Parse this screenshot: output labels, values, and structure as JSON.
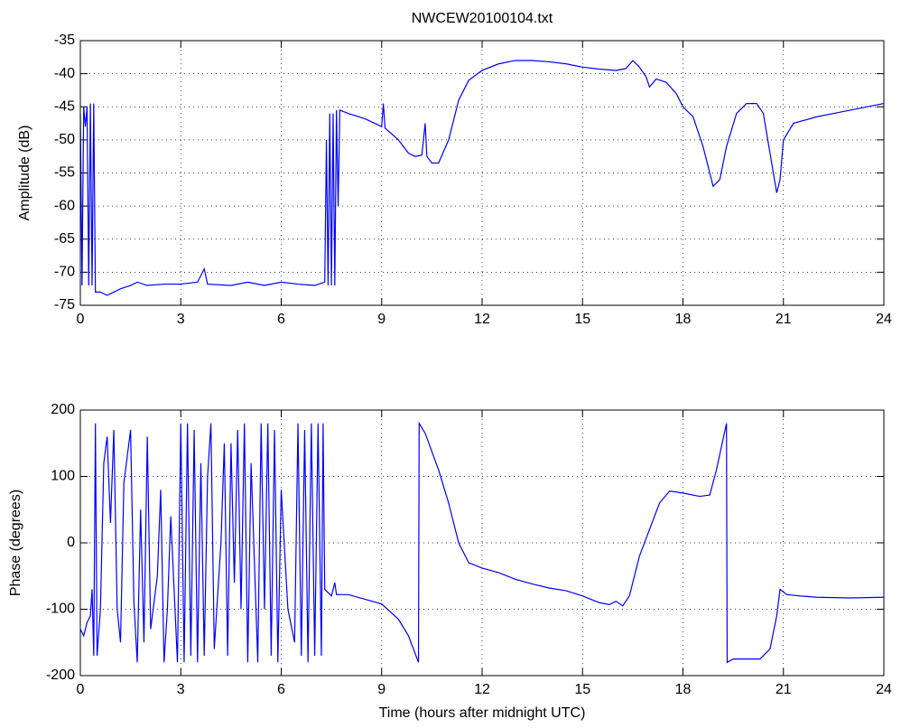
{
  "chart_data": [
    {
      "type": "line",
      "title": "NWCEW20100104.txt",
      "ylabel": "Amplitude (dB)",
      "color": "#0000ff",
      "grid": true,
      "xlim": [
        0,
        24
      ],
      "xticks": [
        0,
        3,
        6,
        9,
        12,
        15,
        18,
        21,
        24
      ],
      "ylim": [
        -75,
        -35
      ],
      "yticks": [
        -75,
        -70,
        -65,
        -60,
        -55,
        -50,
        -45,
        -40,
        -35
      ],
      "x": [
        0,
        0.05,
        0.1,
        0.15,
        0.2,
        0.25,
        0.3,
        0.35,
        0.4,
        0.45,
        0.6,
        0.8,
        1.0,
        1.2,
        1.5,
        1.7,
        2.0,
        2.5,
        3.0,
        3.5,
        3.7,
        3.8,
        4.5,
        5,
        5.5,
        6,
        6.5,
        7.0,
        7.3,
        7.35,
        7.4,
        7.45,
        7.5,
        7.55,
        7.6,
        7.65,
        7.7,
        7.75,
        8,
        8.5,
        9,
        9.05,
        9.1,
        9.5,
        9.8,
        10.0,
        10.2,
        10.3,
        10.35,
        10.5,
        10.7,
        11,
        11.3,
        11.6,
        12,
        12.5,
        13,
        13.5,
        14,
        14.5,
        15,
        15.5,
        16,
        16.3,
        16.5,
        16.7,
        16.9,
        17.0,
        17.2,
        17.5,
        17.8,
        18,
        18.3,
        18.6,
        18.9,
        19.1,
        19.3,
        19.6,
        19.9,
        20.2,
        20.4,
        20.6,
        20.8,
        20.9,
        21,
        21.3,
        22,
        23,
        24
      ],
      "values": [
        -46,
        -72,
        -45,
        -48,
        -45,
        -72,
        -44.5,
        -72,
        -44.5,
        -73,
        -73,
        -73.5,
        -73,
        -72.5,
        -72,
        -71.5,
        -72,
        -71.8,
        -71.8,
        -71.5,
        -69.5,
        -71.8,
        -72,
        -71.5,
        -72,
        -71.5,
        -71.8,
        -72,
        -71.5,
        -50,
        -72,
        -46,
        -72,
        -46,
        -72,
        -45.5,
        -60,
        -45.5,
        -46,
        -46.8,
        -48,
        -44.5,
        -48.2,
        -50,
        -52,
        -52.5,
        -52.3,
        -47.5,
        -52.5,
        -53.5,
        -53.5,
        -50,
        -44,
        -41,
        -39.5,
        -38.5,
        -38,
        -38,
        -38.2,
        -38.5,
        -39,
        -39.3,
        -39.5,
        -39.2,
        -38,
        -39,
        -40.5,
        -42,
        -40.8,
        -41.3,
        -43,
        -45,
        -46.5,
        -51,
        -57,
        -56,
        -51,
        -46,
        -44.5,
        -44.5,
        -46,
        -52,
        -58,
        -56,
        -50,
        -47.5,
        -46.5,
        -45.5,
        -44.5
      ]
    },
    {
      "type": "line",
      "ylabel": "Phase (degrees)",
      "xlabel": "Time (hours after midnight UTC)",
      "color": "#0000ff",
      "grid": true,
      "xlim": [
        0,
        24
      ],
      "xticks": [
        0,
        3,
        6,
        9,
        12,
        15,
        18,
        21,
        24
      ],
      "ylim": [
        -200,
        200
      ],
      "yticks": [
        -200,
        -100,
        0,
        100,
        200
      ],
      "x": [
        0,
        0.1,
        0.2,
        0.3,
        0.35,
        0.4,
        0.45,
        0.5,
        0.6,
        0.7,
        0.8,
        0.9,
        1.0,
        1.1,
        1.2,
        1.3,
        1.5,
        1.6,
        1.7,
        1.8,
        1.9,
        2.0,
        2.1,
        2.3,
        2.4,
        2.5,
        2.6,
        2.7,
        2.9,
        3.0,
        3.1,
        3.2,
        3.3,
        3.4,
        3.5,
        3.6,
        3.7,
        3.8,
        3.9,
        4.0,
        4.2,
        4.3,
        4.4,
        4.5,
        4.6,
        4.7,
        4.8,
        4.9,
        5.0,
        5.1,
        5.3,
        5.4,
        5.5,
        5.6,
        5.7,
        5.8,
        5.9,
        6.0,
        6.2,
        6.4,
        6.5,
        6.6,
        6.7,
        6.8,
        6.9,
        7.0,
        7.1,
        7.2,
        7.25,
        7.3,
        7.5,
        7.6,
        7.65,
        8,
        8.5,
        9,
        9.5,
        9.8,
        10.1,
        10.12,
        10.3,
        10.7,
        11.0,
        11.3,
        11.6,
        12,
        12.5,
        13,
        13.5,
        14,
        14.5,
        15,
        15.5,
        15.8,
        16.0,
        16.2,
        16.4,
        16.7,
        17,
        17.3,
        17.6,
        18,
        18.5,
        18.8,
        19,
        19.3,
        19.32,
        19.5,
        20,
        20.3,
        20.6,
        20.8,
        20.9,
        21.1,
        21.5,
        22,
        23,
        24
      ],
      "values": [
        -130,
        -140,
        -120,
        -110,
        -70,
        -170,
        180,
        -170,
        -100,
        120,
        160,
        30,
        170,
        -100,
        -150,
        90,
        170,
        -90,
        -180,
        50,
        -150,
        160,
        -130,
        -50,
        80,
        -180,
        -100,
        40,
        -180,
        180,
        -180,
        180,
        -170,
        170,
        -180,
        120,
        -170,
        100,
        180,
        -160,
        0,
        150,
        -170,
        150,
        -60,
        170,
        -100,
        180,
        -180,
        120,
        -180,
        180,
        -100,
        180,
        -170,
        170,
        -180,
        80,
        -100,
        -150,
        180,
        -170,
        170,
        -180,
        180,
        -170,
        180,
        -170,
        180,
        -70,
        -80,
        -60,
        -78,
        -78,
        -85,
        -92,
        -115,
        -140,
        -180,
        180,
        165,
        110,
        60,
        0,
        -30,
        -38,
        -45,
        -55,
        -62,
        -68,
        -72,
        -80,
        -90,
        -93,
        -88,
        -95,
        -80,
        -20,
        20,
        60,
        78,
        75,
        70,
        72,
        110,
        180,
        -180,
        -175,
        -175,
        -175,
        -160,
        -110,
        -70,
        -78,
        -80,
        -82,
        -83,
        -82
      ]
    }
  ]
}
